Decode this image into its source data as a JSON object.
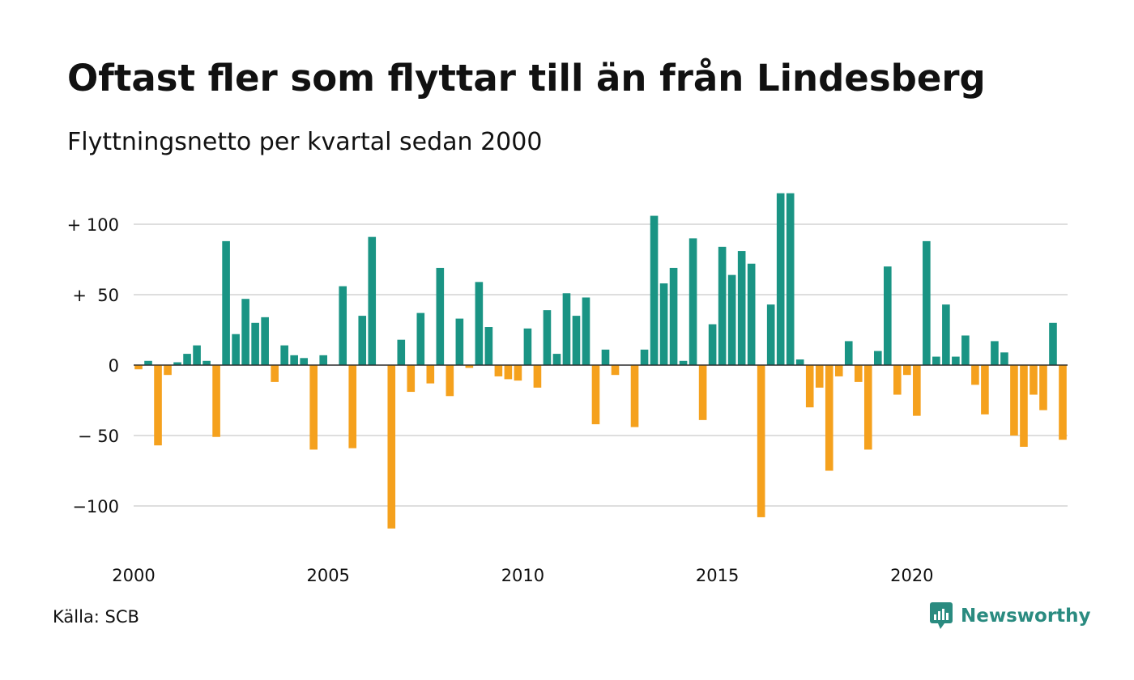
{
  "title": "Oftast fler som flyttar till än från Lindesberg",
  "subtitle": "Flyttningsnetto per kvartal sedan 2000",
  "source": "Källa: SCB",
  "brand": {
    "name": "Newsworthy",
    "icon": "newsworthy-logo-icon",
    "color": "#2a8b80"
  },
  "chart_data": {
    "type": "bar",
    "x_start_year": 2000,
    "quarters_per_year": 4,
    "x_ticks": [
      "2000",
      "2005",
      "2010",
      "2015",
      "2020"
    ],
    "y_ticks": [
      {
        "value": 100,
        "label": "+ 100"
      },
      {
        "value": 50,
        "label": "+  50"
      },
      {
        "value": 0,
        "label": "0"
      },
      {
        "value": -50,
        "label": "− 50"
      },
      {
        "value": -100,
        "label": "−100"
      }
    ],
    "ylim": [
      -115,
      122
    ],
    "grid": true,
    "colors": {
      "positive": "#1a9484",
      "negative": "#f5a11d"
    },
    "values": [
      -3,
      3,
      -57,
      -7,
      2,
      8,
      14,
      3,
      -51,
      88,
      22,
      47,
      30,
      34,
      -12,
      14,
      7,
      5,
      -60,
      7,
      0,
      56,
      -59,
      35,
      91,
      0,
      -116,
      18,
      -19,
      37,
      -13,
      69,
      -22,
      33,
      -2,
      59,
      27,
      -8,
      -10,
      -11,
      26,
      -16,
      39,
      8,
      51,
      35,
      48,
      -42,
      11,
      -7,
      0,
      -44,
      11,
      106,
      58,
      69,
      3,
      90,
      -39,
      29,
      84,
      64,
      81,
      72,
      -108,
      43,
      122,
      122,
      4,
      -30,
      -16,
      -75,
      -8,
      17,
      -12,
      -60,
      10,
      70,
      -21,
      -7,
      -36,
      88,
      6,
      43,
      6,
      21,
      -14,
      -35,
      17,
      9,
      -50,
      -58,
      -21,
      -32,
      30,
      -53
    ]
  }
}
